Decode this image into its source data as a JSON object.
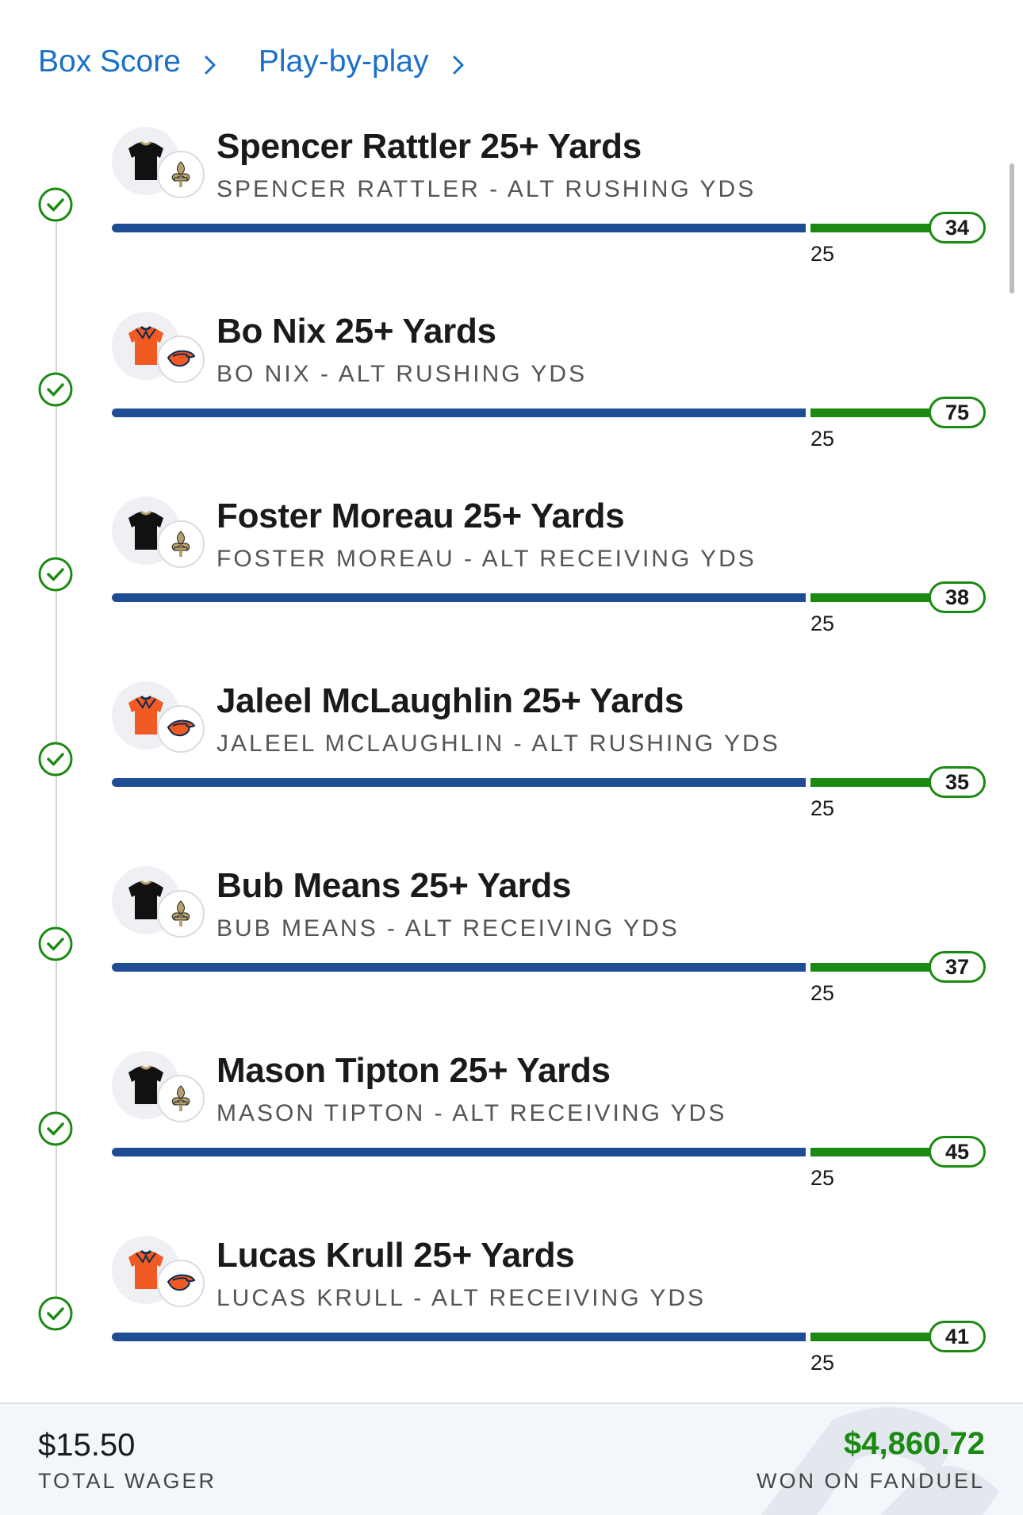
{
  "nav": {
    "box_score": "Box Score",
    "play_by_play": "Play-by-play"
  },
  "colors": {
    "link": "#1a6fc9",
    "progress": "#1e4d94",
    "success": "#1b8a12"
  },
  "legs": [
    {
      "title": "Spencer Rattler 25+ Yards",
      "subtitle": "SPENCER RATTLER - ALT RUSHING YDS",
      "threshold": "25",
      "actual": "34",
      "team": "saints",
      "jersey_icon": "black-jersey-icon",
      "logo_icon": "fleur-de-lis-icon"
    },
    {
      "title": "Bo Nix 25+ Yards",
      "subtitle": "BO NIX - ALT RUSHING YDS",
      "threshold": "25",
      "actual": "75",
      "team": "broncos",
      "jersey_icon": "orange-jersey-icon",
      "logo_icon": "bronco-logo-icon"
    },
    {
      "title": "Foster Moreau 25+ Yards",
      "subtitle": "FOSTER MOREAU - ALT RECEIVING YDS",
      "threshold": "25",
      "actual": "38",
      "team": "saints",
      "jersey_icon": "black-jersey-icon",
      "logo_icon": "fleur-de-lis-icon"
    },
    {
      "title": "Jaleel McLaughlin 25+ Yards",
      "subtitle": "JALEEL MCLAUGHLIN - ALT RUSHING YDS",
      "threshold": "25",
      "actual": "35",
      "team": "broncos",
      "jersey_icon": "orange-jersey-icon",
      "logo_icon": "bronco-logo-icon"
    },
    {
      "title": "Bub Means 25+ Yards",
      "subtitle": "BUB MEANS - ALT RECEIVING YDS",
      "threshold": "25",
      "actual": "37",
      "team": "saints",
      "jersey_icon": "black-jersey-icon",
      "logo_icon": "fleur-de-lis-icon"
    },
    {
      "title": "Mason Tipton 25+ Yards",
      "subtitle": "MASON TIPTON - ALT RECEIVING YDS",
      "threshold": "25",
      "actual": "45",
      "team": "saints",
      "jersey_icon": "black-jersey-icon",
      "logo_icon": "fleur-de-lis-icon"
    },
    {
      "title": "Lucas Krull 25+ Yards",
      "subtitle": "LUCAS KRULL - ALT RECEIVING YDS",
      "threshold": "25",
      "actual": "41",
      "team": "broncos",
      "jersey_icon": "orange-jersey-icon",
      "logo_icon": "bronco-logo-icon"
    }
  ],
  "footer": {
    "wager_amount": "$15.50",
    "wager_label": "TOTAL WAGER",
    "won_amount": "$4,860.72",
    "won_label": "WON ON FANDUEL"
  }
}
